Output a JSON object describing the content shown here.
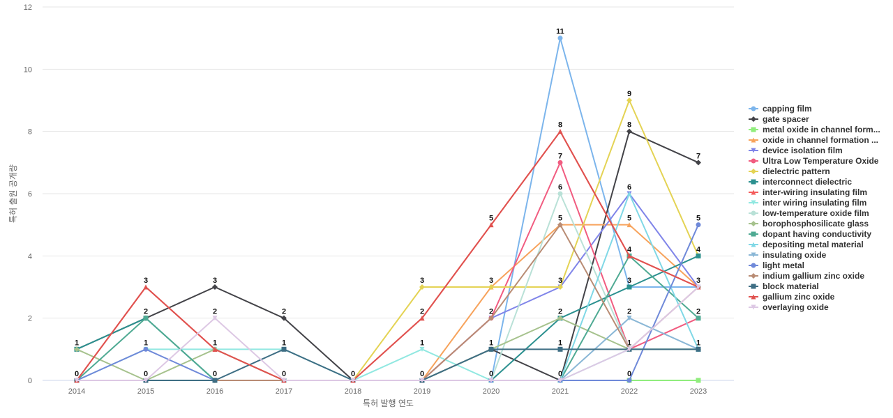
{
  "chart_data": {
    "type": "line",
    "title": "",
    "xlabel": "특허 발행 연도",
    "ylabel": "특허 출원 공개량",
    "x": [
      "2014",
      "2015",
      "2016",
      "2017",
      "2018",
      "2019",
      "2020",
      "2021",
      "2022",
      "2023"
    ],
    "ylim": [
      0,
      12
    ],
    "yticks": [
      0,
      2,
      4,
      6,
      8,
      10,
      12
    ],
    "grid": true,
    "legend_position": "right",
    "series": [
      {
        "name": "capping film",
        "color": "#7cb5ec",
        "marker": "circle",
        "values": [
          0,
          0,
          0,
          0,
          0,
          0,
          0,
          11,
          3,
          3
        ]
      },
      {
        "name": "gate spacer",
        "color": "#434348",
        "marker": "diamond",
        "values": [
          1,
          2,
          3,
          2,
          0,
          0,
          1,
          0,
          8,
          7
        ]
      },
      {
        "name": "metal oxide in channel formation",
        "legend_label": "metal oxide in channel form...",
        "color": "#90ed7d",
        "marker": "square",
        "values": [
          0,
          0,
          0,
          0,
          0,
          0,
          0,
          0,
          0,
          0
        ]
      },
      {
        "name": "oxide in channel formation",
        "legend_label": "oxide in channel formation ...",
        "color": "#f7a35c",
        "marker": "triangle",
        "values": [
          0,
          0,
          0,
          0,
          0,
          0,
          3,
          5,
          5,
          3
        ]
      },
      {
        "name": "device isolation film",
        "color": "#8085e9",
        "marker": "triangle-down",
        "values": [
          0,
          0,
          0,
          0,
          0,
          0,
          2,
          3,
          6,
          3
        ]
      },
      {
        "name": "Ultra Low Temperature Oxide",
        "color": "#f15c80",
        "marker": "circle",
        "values": [
          0,
          0,
          0,
          0,
          0,
          0,
          2,
          7,
          1,
          2
        ]
      },
      {
        "name": "dielectric pattern",
        "color": "#e4d354",
        "marker": "diamond",
        "values": [
          0,
          0,
          0,
          0,
          0,
          3,
          3,
          3,
          9,
          4
        ]
      },
      {
        "name": "interconnect dielectric",
        "color": "#2b908f",
        "marker": "square",
        "values": [
          1,
          2,
          0,
          0,
          0,
          0,
          0,
          2,
          3,
          4
        ]
      },
      {
        "name": "inter-wiring insulating film",
        "color": "#f45b5b",
        "marker": "triangle",
        "values": [
          0,
          3,
          1,
          0,
          0,
          2,
          5,
          8,
          4,
          3
        ]
      },
      {
        "name": "inter wiring insulating film",
        "color": "#91e8e1",
        "marker": "triangle-down",
        "values": [
          0,
          1,
          1,
          1,
          0,
          1,
          0,
          0,
          1,
          1
        ]
      },
      {
        "name": "low-temperature oxide film",
        "color": "#b9e1d7",
        "marker": "circle",
        "values": [
          0,
          0,
          0,
          0,
          0,
          0,
          0,
          6,
          1,
          1
        ]
      },
      {
        "name": "borophosphosilicate glass",
        "color": "#a6c28d",
        "marker": "diamond",
        "values": [
          1,
          0,
          1,
          0,
          0,
          0,
          1,
          2,
          1,
          1
        ]
      },
      {
        "name": "dopant having conductivity",
        "color": "#4faa93",
        "marker": "square",
        "values": [
          0,
          2,
          0,
          0,
          0,
          0,
          0,
          0,
          4,
          2
        ]
      },
      {
        "name": "depositing metal material",
        "color": "#80d8e6",
        "marker": "triangle",
        "values": [
          0,
          0,
          0,
          0,
          0,
          0,
          0,
          0,
          6,
          1
        ]
      },
      {
        "name": "insulating oxide",
        "color": "#8ab7d6",
        "marker": "triangle-down",
        "values": [
          0,
          0,
          0,
          0,
          0,
          0,
          0,
          0,
          2,
          1
        ]
      },
      {
        "name": "light metal",
        "color": "#6f89d9",
        "marker": "circle",
        "values": [
          0,
          1,
          0,
          0,
          0,
          0,
          0,
          0,
          0,
          5
        ]
      },
      {
        "name": "indium gallium zinc oxide",
        "color": "#b98c74",
        "marker": "diamond",
        "values": [
          0,
          0,
          0,
          0,
          0,
          0,
          2,
          5,
          1,
          3
        ]
      },
      {
        "name": "block material",
        "color": "#3e6e84",
        "marker": "square",
        "values": [
          0,
          0,
          0,
          1,
          0,
          0,
          1,
          1,
          1,
          1
        ]
      },
      {
        "name": "gallium zinc oxide",
        "color": "#e0524f",
        "marker": "triangle",
        "values": [
          0,
          3,
          1,
          0,
          0,
          2,
          5,
          8,
          4,
          3
        ]
      },
      {
        "name": "overlaying oxide",
        "color": "#ddc8e4",
        "marker": "triangle-down",
        "values": [
          0,
          0,
          2,
          0,
          0,
          0,
          0,
          0,
          1,
          3
        ]
      }
    ],
    "data_labels": [
      {
        "x": "2014",
        "text": "1",
        "y": 1
      },
      {
        "x": "2014",
        "text": "0",
        "y": 0
      },
      {
        "x": "2015",
        "text": "3",
        "y": 3
      },
      {
        "x": "2015",
        "text": "2",
        "y": 2
      },
      {
        "x": "2015",
        "text": "1",
        "y": 1
      },
      {
        "x": "2015",
        "text": "0",
        "y": 0
      },
      {
        "x": "2016",
        "text": "3",
        "y": 3
      },
      {
        "x": "2016",
        "text": "2",
        "y": 2
      },
      {
        "x": "2016",
        "text": "1",
        "y": 1
      },
      {
        "x": "2016",
        "text": "0",
        "y": 0
      },
      {
        "x": "2017",
        "text": "2",
        "y": 2
      },
      {
        "x": "2017",
        "text": "1",
        "y": 1
      },
      {
        "x": "2017",
        "text": "0",
        "y": 0
      },
      {
        "x": "2018",
        "text": "0",
        "y": 0
      },
      {
        "x": "2019",
        "text": "3",
        "y": 3
      },
      {
        "x": "2019",
        "text": "2",
        "y": 2
      },
      {
        "x": "2019",
        "text": "1",
        "y": 1
      },
      {
        "x": "2019",
        "text": "0",
        "y": 0
      },
      {
        "x": "2020",
        "text": "5",
        "y": 5
      },
      {
        "x": "2020",
        "text": "3",
        "y": 3
      },
      {
        "x": "2020",
        "text": "2",
        "y": 2
      },
      {
        "x": "2020",
        "text": "1",
        "y": 1
      },
      {
        "x": "2020",
        "text": "0",
        "y": 0
      },
      {
        "x": "2021",
        "text": "11",
        "y": 11
      },
      {
        "x": "2021",
        "text": "8",
        "y": 8
      },
      {
        "x": "2021",
        "text": "7",
        "y": 7
      },
      {
        "x": "2021",
        "text": "6",
        "y": 6
      },
      {
        "x": "2021",
        "text": "5",
        "y": 5
      },
      {
        "x": "2021",
        "text": "3",
        "y": 3
      },
      {
        "x": "2021",
        "text": "2",
        "y": 2
      },
      {
        "x": "2021",
        "text": "1",
        "y": 1
      },
      {
        "x": "2021",
        "text": "0",
        "y": 0
      },
      {
        "x": "2022",
        "text": "9",
        "y": 9
      },
      {
        "x": "2022",
        "text": "8",
        "y": 8
      },
      {
        "x": "2022",
        "text": "6",
        "y": 6
      },
      {
        "x": "2022",
        "text": "5",
        "y": 5
      },
      {
        "x": "2022",
        "text": "4",
        "y": 4
      },
      {
        "x": "2022",
        "text": "3",
        "y": 3
      },
      {
        "x": "2022",
        "text": "2",
        "y": 2
      },
      {
        "x": "2022",
        "text": "1",
        "y": 1
      },
      {
        "x": "2022",
        "text": "0",
        "y": 0
      },
      {
        "x": "2023",
        "text": "7",
        "y": 7
      },
      {
        "x": "2023",
        "text": "5",
        "y": 5
      },
      {
        "x": "2023",
        "text": "4",
        "y": 4
      },
      {
        "x": "2023",
        "text": "3",
        "y": 3
      },
      {
        "x": "2023",
        "text": "2",
        "y": 2
      },
      {
        "x": "2023",
        "text": "1",
        "y": 1
      }
    ]
  }
}
